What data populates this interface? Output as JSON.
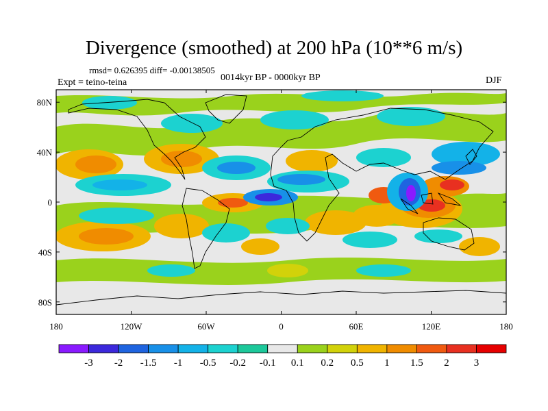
{
  "title": "Divergence (smoothed) at 200 hPa (10**6 m/s)",
  "stats": "rmsd= 0.626395 diff= -0.00138505",
  "experiment": "Expt = teino-teina",
  "period": "0014kyr BP - 0000kyr BP",
  "season": "DJF",
  "axes": {
    "x_ticks": [
      "180",
      "120W",
      "60W",
      "0",
      "60E",
      "120E",
      "180"
    ],
    "y_ticks": [
      "80N",
      "40N",
      "0",
      "40S",
      "80S"
    ]
  },
  "colorbar": {
    "labels": [
      "-3",
      "-2",
      "-1.5",
      "-1",
      "-0.5",
      "-0.2",
      "-0.1",
      "0.1",
      "0.2",
      "0.5",
      "1",
      "1.5",
      "2",
      "3"
    ],
    "colors": [
      "#8a1aff",
      "#3c28dc",
      "#1f64e0",
      "#1890e8",
      "#13b2e8",
      "#1cd2d0",
      "#1cc89a",
      "#e8e8e8",
      "#9ad21c",
      "#d2d20a",
      "#f0b400",
      "#f08c00",
      "#f05a10",
      "#e83020",
      "#e60000"
    ]
  },
  "map_colors": {
    "land": "#e8e8e8",
    "coast": "#000000"
  }
}
